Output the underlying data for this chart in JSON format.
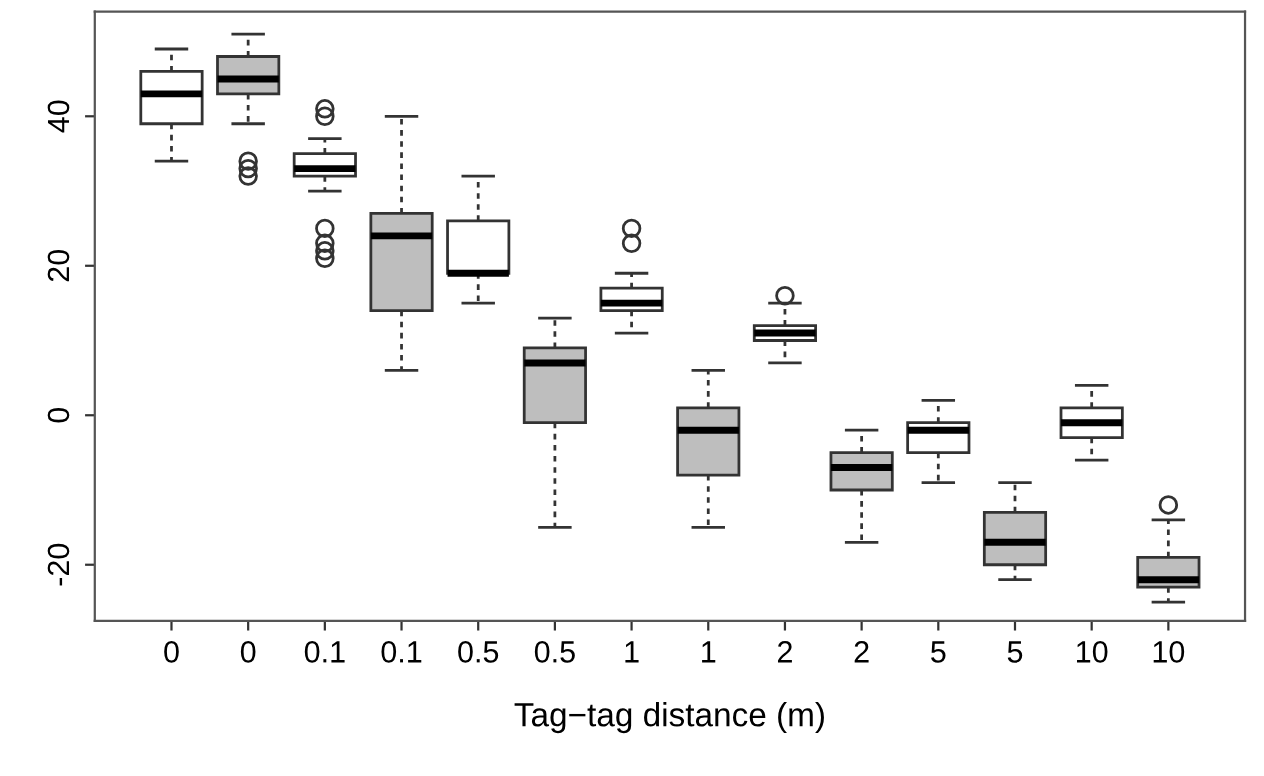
{
  "chart_data": {
    "type": "box",
    "xlabel": "Tag−tag distance (m)",
    "categories": [
      "0",
      "0",
      "0.1",
      "0.1",
      "0.5",
      "0.5",
      "1",
      "1",
      "2",
      "2",
      "5",
      "5",
      "10",
      "10"
    ],
    "colors": [
      "#ffffff",
      "#bebebe",
      "#ffffff",
      "#bebebe",
      "#ffffff",
      "#bebebe",
      "#ffffff",
      "#bebebe",
      "#ffffff",
      "#bebebe",
      "#ffffff",
      "#bebebe",
      "#ffffff",
      "#bebebe"
    ],
    "boxes": [
      {
        "low": 34,
        "q1": 39,
        "median": 43,
        "q3": 46,
        "high": 49
      },
      {
        "low": 39,
        "q1": 43,
        "median": 45,
        "q3": 48,
        "high": 51,
        "outliers": [
          34,
          33,
          32
        ]
      },
      {
        "low": 30,
        "q1": 32,
        "median": 33,
        "q3": 35,
        "high": 37,
        "outliers": [
          41,
          40,
          25,
          23,
          22,
          21
        ]
      },
      {
        "low": 6,
        "q1": 14,
        "median": 24,
        "q3": 27,
        "high": 40
      },
      {
        "low": 15,
        "q1": 19,
        "median": 19,
        "q3": 26,
        "high": 32
      },
      {
        "low": -15,
        "q1": -1,
        "median": 7,
        "q3": 9,
        "high": 13
      },
      {
        "low": 11,
        "q1": 14,
        "median": 15,
        "q3": 17,
        "high": 19,
        "outliers": [
          25,
          23
        ]
      },
      {
        "low": -15,
        "q1": -8,
        "median": -2,
        "q3": 1,
        "high": 6
      },
      {
        "low": 7,
        "q1": 10,
        "median": 11,
        "q3": 12,
        "high": 15,
        "outliers": [
          16
        ]
      },
      {
        "low": -17,
        "q1": -10,
        "median": -7,
        "q3": -5,
        "high": -2
      },
      {
        "low": -9,
        "q1": -5,
        "median": -2,
        "q3": -1,
        "high": 2
      },
      {
        "low": -22,
        "q1": -20,
        "median": -17,
        "q3": -13,
        "high": -9
      },
      {
        "low": -6,
        "q1": -3,
        "median": -1,
        "q3": 1,
        "high": 4
      },
      {
        "low": -25,
        "q1": -23,
        "median": -22,
        "q3": -19,
        "high": -14,
        "outliers": [
          -12
        ]
      }
    ],
    "ylim": [
      -27.5,
      54
    ],
    "yticks": [
      -20,
      0,
      20,
      40
    ],
    "grid": false,
    "legend": false
  }
}
